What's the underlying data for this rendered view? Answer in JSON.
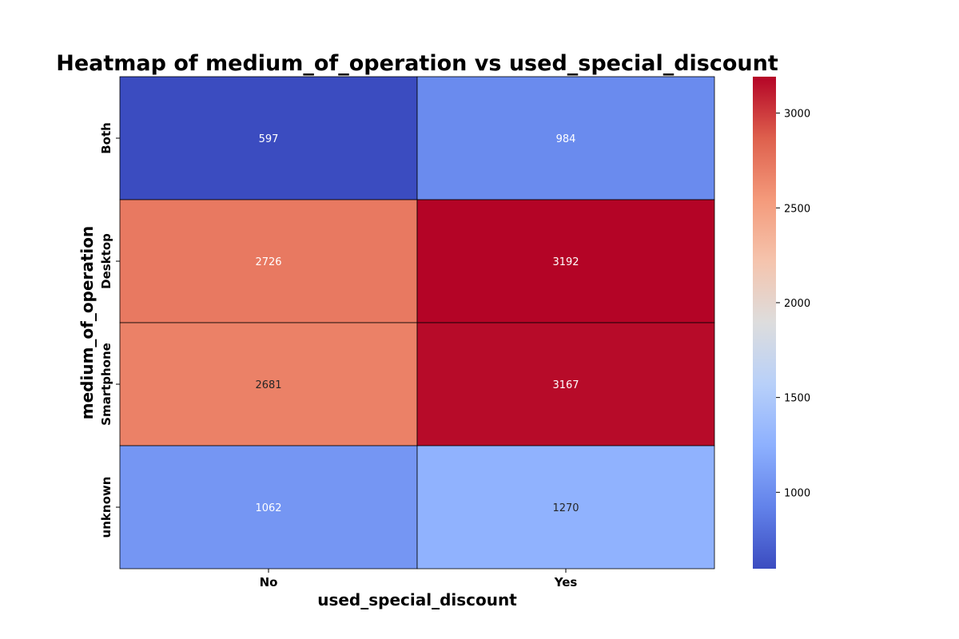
{
  "chart_data": {
    "type": "heatmap",
    "title": "Heatmap of medium_of_operation vs used_special_discount",
    "xlabel": "used_special_discount",
    "ylabel": "medium_of_operation",
    "x_categories": [
      "No",
      "Yes"
    ],
    "y_categories": [
      "Both",
      "Desktop",
      "Smartphone",
      "unknown"
    ],
    "values": [
      [
        597,
        984
      ],
      [
        2726,
        3192
      ],
      [
        2681,
        3167
      ],
      [
        1062,
        1270
      ]
    ],
    "colormap": "coolwarm",
    "color_range": [
      597,
      3192
    ],
    "colorbar_ticks": [
      1000,
      1500,
      2000,
      2500,
      3000
    ],
    "grid": true,
    "colorbar": "right"
  }
}
